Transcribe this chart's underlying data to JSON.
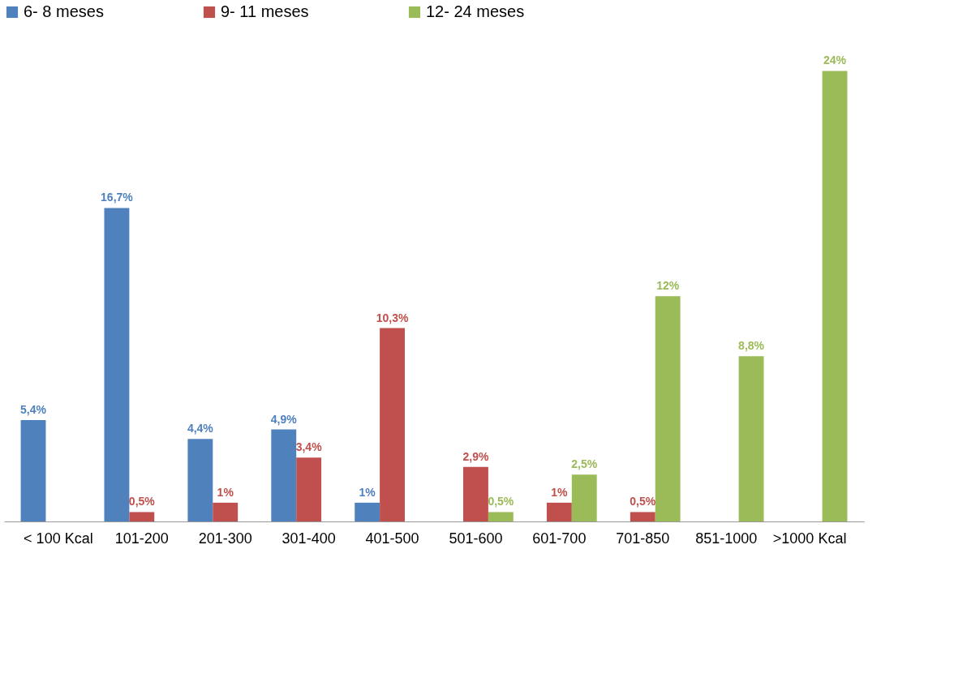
{
  "chart_data": {
    "type": "bar",
    "categories": [
      "< 100 Kcal",
      "101-200",
      "201-300",
      "301-400",
      "401-500",
      "501-600",
      "601-700",
      "701-850",
      "851-1000",
      ">1000 Kcal"
    ],
    "series": [
      {
        "name": "6- 8 meses",
        "color": "#4f81bd",
        "values": [
          5.4,
          16.7,
          4.4,
          4.9,
          1,
          null,
          null,
          null,
          null,
          null
        ],
        "value_labels": [
          "5,4%",
          "16,7%",
          "4,4%",
          "4,9%",
          "1%",
          null,
          null,
          null,
          null,
          null
        ]
      },
      {
        "name": "9- 11 meses",
        "color": "#c0504d",
        "values": [
          null,
          0.5,
          1,
          3.4,
          10.3,
          2.9,
          1,
          0.5,
          null,
          null
        ],
        "value_labels": [
          null,
          "0,5%",
          "1%",
          "3,4%",
          "10,3%",
          "2,9%",
          "1%",
          "0,5%",
          null,
          null
        ]
      },
      {
        "name": "12- 24 meses",
        "color": "#9bbb59",
        "values": [
          null,
          null,
          null,
          null,
          null,
          0.5,
          2.5,
          12,
          8.8,
          24
        ],
        "value_labels": [
          null,
          null,
          null,
          null,
          null,
          "0,5%",
          "2,5%",
          "12%",
          "8,8%",
          "24%"
        ]
      }
    ],
    "legend": "top",
    "grid": false
  }
}
